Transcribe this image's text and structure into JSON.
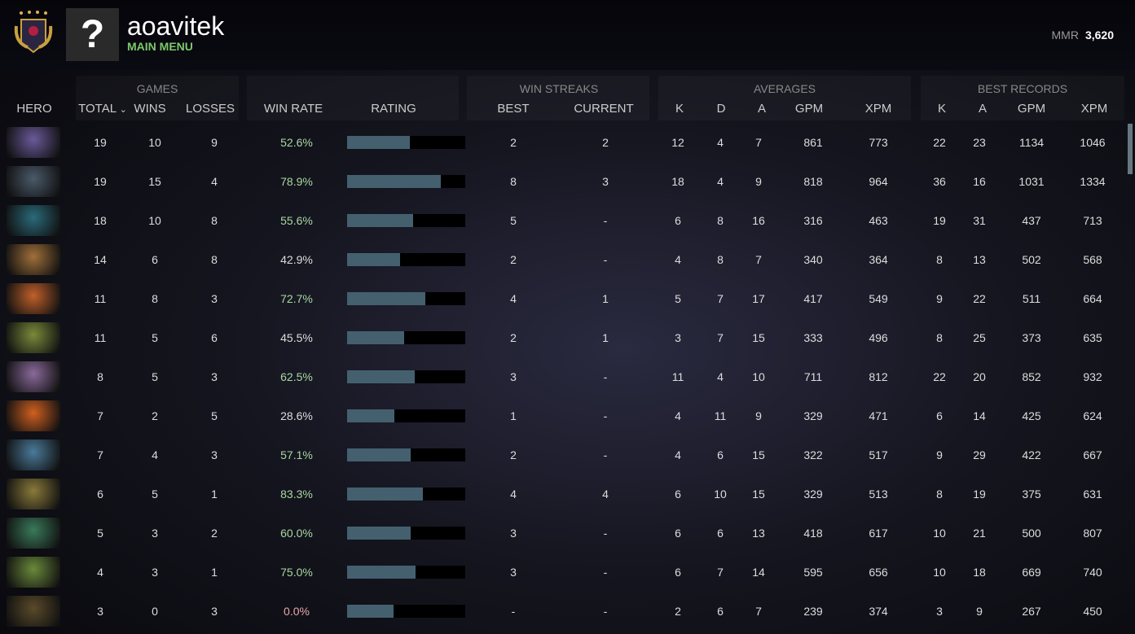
{
  "header": {
    "username": "aoavitek",
    "subtitle": "MAIN MENU",
    "avatar_glyph": "?",
    "mmr_label": "MMR",
    "mmr_value": "3,620"
  },
  "groups": {
    "games": "GAMES",
    "streaks": "WIN STREAKS",
    "averages": "AVERAGES",
    "best": "BEST RECORDS"
  },
  "columns": {
    "hero": "HERO",
    "total": "TOTAL",
    "sort_icon": "⌄",
    "wins": "WINS",
    "losses": "LOSSES",
    "winrate": "WIN RATE",
    "rating": "RATING",
    "best": "BEST",
    "current": "CURRENT",
    "k": "K",
    "d": "D",
    "a": "A",
    "gpm": "GPM",
    "xpm": "XPM",
    "bk": "K",
    "ba": "A",
    "bgpm": "GPM",
    "bxpm": "XPM"
  },
  "colors": {
    "win_high": "#a9d8a0",
    "win_low": "#dddddd",
    "win_zero": "#e8a8a8",
    "bar": "#44606f"
  },
  "rows": [
    {
      "total": "19",
      "wins": "10",
      "losses": "9",
      "winrate": "52.6%",
      "rating": 0.53,
      "best": "2",
      "current": "2",
      "k": "12",
      "d": "4",
      "a": "7",
      "gpm": "861",
      "xpm": "773",
      "bk": "22",
      "ba": "23",
      "bgpm": "1134",
      "bxpm": "1046",
      "hero_color": "#6a5a9a"
    },
    {
      "total": "19",
      "wins": "15",
      "losses": "4",
      "winrate": "78.9%",
      "rating": 0.79,
      "best": "8",
      "current": "3",
      "k": "18",
      "d": "4",
      "a": "9",
      "gpm": "818",
      "xpm": "964",
      "bk": "36",
      "ba": "16",
      "bgpm": "1031",
      "bxpm": "1334",
      "hero_color": "#4a5a6a"
    },
    {
      "total": "18",
      "wins": "10",
      "losses": "8",
      "winrate": "55.6%",
      "rating": 0.56,
      "best": "5",
      "current": "-",
      "k": "6",
      "d": "8",
      "a": "16",
      "gpm": "316",
      "xpm": "463",
      "bk": "19",
      "ba": "31",
      "bgpm": "437",
      "bxpm": "713",
      "hero_color": "#2a6a7a"
    },
    {
      "total": "14",
      "wins": "6",
      "losses": "8",
      "winrate": "42.9%",
      "rating": 0.45,
      "best": "2",
      "current": "-",
      "k": "4",
      "d": "8",
      "a": "7",
      "gpm": "340",
      "xpm": "364",
      "bk": "8",
      "ba": "13",
      "bgpm": "502",
      "bxpm": "568",
      "hero_color": "#a0703a"
    },
    {
      "total": "11",
      "wins": "8",
      "losses": "3",
      "winrate": "72.7%",
      "rating": 0.66,
      "best": "4",
      "current": "1",
      "k": "5",
      "d": "7",
      "a": "17",
      "gpm": "417",
      "xpm": "549",
      "bk": "9",
      "ba": "22",
      "bgpm": "511",
      "bxpm": "664",
      "hero_color": "#c0602a"
    },
    {
      "total": "11",
      "wins": "5",
      "losses": "6",
      "winrate": "45.5%",
      "rating": 0.48,
      "best": "2",
      "current": "1",
      "k": "3",
      "d": "7",
      "a": "15",
      "gpm": "333",
      "xpm": "496",
      "bk": "8",
      "ba": "25",
      "bgpm": "373",
      "bxpm": "635",
      "hero_color": "#7a8a3a"
    },
    {
      "total": "8",
      "wins": "5",
      "losses": "3",
      "winrate": "62.5%",
      "rating": 0.57,
      "best": "3",
      "current": "-",
      "k": "11",
      "d": "4",
      "a": "10",
      "gpm": "711",
      "xpm": "812",
      "bk": "22",
      "ba": "20",
      "bgpm": "852",
      "bxpm": "932",
      "hero_color": "#8a6a9a"
    },
    {
      "total": "7",
      "wins": "2",
      "losses": "5",
      "winrate": "28.6%",
      "rating": 0.4,
      "best": "1",
      "current": "-",
      "k": "4",
      "d": "11",
      "a": "9",
      "gpm": "329",
      "xpm": "471",
      "bk": "6",
      "ba": "14",
      "bgpm": "425",
      "bxpm": "624",
      "hero_color": "#d06020"
    },
    {
      "total": "7",
      "wins": "4",
      "losses": "3",
      "winrate": "57.1%",
      "rating": 0.54,
      "best": "2",
      "current": "-",
      "k": "4",
      "d": "6",
      "a": "15",
      "gpm": "322",
      "xpm": "517",
      "bk": "9",
      "ba": "29",
      "bgpm": "422",
      "bxpm": "667",
      "hero_color": "#4a7a9a"
    },
    {
      "total": "6",
      "wins": "5",
      "losses": "1",
      "winrate": "83.3%",
      "rating": 0.64,
      "best": "4",
      "current": "4",
      "k": "6",
      "d": "10",
      "a": "15",
      "gpm": "329",
      "xpm": "513",
      "bk": "8",
      "ba": "19",
      "bgpm": "375",
      "bxpm": "631",
      "hero_color": "#8a7a3a"
    },
    {
      "total": "5",
      "wins": "3",
      "losses": "2",
      "winrate": "60.0%",
      "rating": 0.54,
      "best": "3",
      "current": "-",
      "k": "6",
      "d": "6",
      "a": "13",
      "gpm": "418",
      "xpm": "617",
      "bk": "10",
      "ba": "21",
      "bgpm": "500",
      "bxpm": "807",
      "hero_color": "#3a7a5a"
    },
    {
      "total": "4",
      "wins": "3",
      "losses": "1",
      "winrate": "75.0%",
      "rating": 0.58,
      "best": "3",
      "current": "-",
      "k": "6",
      "d": "7",
      "a": "14",
      "gpm": "595",
      "xpm": "656",
      "bk": "10",
      "ba": "18",
      "bgpm": "669",
      "bxpm": "740",
      "hero_color": "#6a8a3a"
    },
    {
      "total": "3",
      "wins": "0",
      "losses": "3",
      "winrate": "0.0%",
      "rating": 0.39,
      "best": "-",
      "current": "-",
      "k": "2",
      "d": "6",
      "a": "7",
      "gpm": "239",
      "xpm": "374",
      "bk": "3",
      "ba": "9",
      "bgpm": "267",
      "bxpm": "450",
      "hero_color": "#5a4a2a"
    }
  ]
}
